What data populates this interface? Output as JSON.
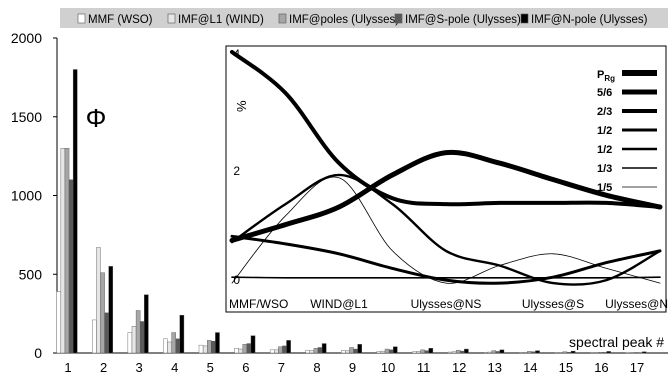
{
  "chart_data": [
    {
      "type": "bar",
      "symbol": "Φ",
      "xlabel": "spectral peak #",
      "ylim": [
        0,
        2000
      ],
      "yticks": [
        0,
        500,
        1000,
        1500,
        2000
      ],
      "legend_position": "top",
      "categories": [
        "1",
        "2",
        "3",
        "4",
        "5",
        "6",
        "7",
        "8",
        "9",
        "10",
        "11",
        "12",
        "13",
        "14",
        "15",
        "16",
        "17"
      ],
      "series": [
        {
          "name": "MMF (WSO)",
          "color": "#ffffff",
          "values": [
            390,
            210,
            130,
            90,
            50,
            30,
            20,
            18,
            15,
            10,
            8,
            6,
            5,
            4,
            3,
            3,
            2
          ]
        },
        {
          "name": "IMF@L1 (WIND)",
          "color": "#e6e6e6",
          "values": [
            1300,
            670,
            170,
            70,
            45,
            25,
            20,
            15,
            15,
            12,
            10,
            8,
            6,
            5,
            4,
            3,
            3
          ]
        },
        {
          "name": "IMF@poles (Ulysses)",
          "color": "#a6a6a6",
          "values": [
            1300,
            510,
            270,
            130,
            80,
            55,
            40,
            30,
            35,
            25,
            20,
            18,
            15,
            10,
            8,
            5,
            4
          ]
        },
        {
          "name": "IMF@S-pole (Ulysses)",
          "color": "#595959",
          "values": [
            1100,
            255,
            200,
            90,
            75,
            60,
            45,
            35,
            25,
            20,
            15,
            12,
            10,
            8,
            5,
            4,
            3
          ]
        },
        {
          "name": "IMF@N-pole (Ulysses)",
          "color": "#000000",
          "values": [
            1800,
            550,
            370,
            240,
            130,
            110,
            80,
            60,
            55,
            40,
            30,
            25,
            20,
            15,
            12,
            10,
            8
          ]
        }
      ]
    },
    {
      "type": "line",
      "ylabel": "%",
      "ylim": [
        0,
        4
      ],
      "yticks": [
        "0",
        "2",
        "4"
      ],
      "categories": [
        "MMF/WSO",
        "WIND@L1",
        "Ulysses@NS",
        "Ulysses@S",
        "Ulysses@N"
      ],
      "legend_title": "P",
      "legend_title_sub": "Rg",
      "legend_position": "top-right",
      "series": [
        {
          "name": "5/6",
          "stroke_width": 5,
          "points": [
            [
              0,
              0.78
            ],
            [
              0.5,
              1.05
            ],
            [
              1,
              1.35
            ],
            [
              1.5,
              1.9
            ],
            [
              2,
              2.28
            ],
            [
              2.5,
              2.1
            ],
            [
              3,
              1.82
            ],
            [
              3.5,
              1.55
            ],
            [
              4,
              1.35
            ]
          ]
        },
        {
          "name": "2/3",
          "stroke_width": 4,
          "points": [
            [
              0,
              4.0
            ],
            [
              0.5,
              3.3
            ],
            [
              1,
              2.1
            ],
            [
              1.5,
              1.5
            ],
            [
              2,
              1.4
            ],
            [
              2.5,
              1.42
            ],
            [
              3,
              1.42
            ],
            [
              3.5,
              1.42
            ],
            [
              4,
              1.35
            ]
          ]
        },
        {
          "name": "1/2",
          "stroke_width": 3,
          "points": [
            [
              0,
              0.85
            ],
            [
              0.5,
              0.72
            ],
            [
              1,
              0.55
            ],
            [
              1.5,
              0.3
            ],
            [
              2,
              0.1
            ],
            [
              2.5,
              0.05
            ],
            [
              3,
              0.15
            ],
            [
              3.5,
              0.4
            ],
            [
              4,
              0.6
            ]
          ]
        },
        {
          "name": "1/2",
          "stroke_width": 2.4,
          "points": [
            [
              0,
              0.75
            ],
            [
              0.5,
              1.4
            ],
            [
              1,
              1.9
            ],
            [
              1.5,
              1.4
            ],
            [
              2,
              0.6
            ],
            [
              2.5,
              0.35
            ],
            [
              3,
              0.05
            ],
            [
              3.5,
              0.1
            ],
            [
              4,
              0.6
            ]
          ]
        },
        {
          "name": "1/3",
          "stroke_width": 1.6,
          "points": [
            [
              0,
              0.15
            ],
            [
              0.5,
              0.14
            ],
            [
              1,
              0.14
            ],
            [
              1.5,
              0.14
            ],
            [
              2,
              0.14
            ],
            [
              2.5,
              0.14
            ],
            [
              3,
              0.14
            ],
            [
              3.5,
              0.14
            ],
            [
              4,
              0.15
            ]
          ]
        },
        {
          "name": "1/5",
          "stroke_width": 0.8,
          "points": [
            [
              0,
              0.05
            ],
            [
              0.5,
              1.2
            ],
            [
              1,
              1.85
            ],
            [
              1.5,
              0.6
            ],
            [
              2,
              0.05
            ],
            [
              2.5,
              0.35
            ],
            [
              3,
              0.55
            ],
            [
              3.5,
              0.3
            ],
            [
              4,
              0.05
            ]
          ]
        }
      ]
    }
  ]
}
